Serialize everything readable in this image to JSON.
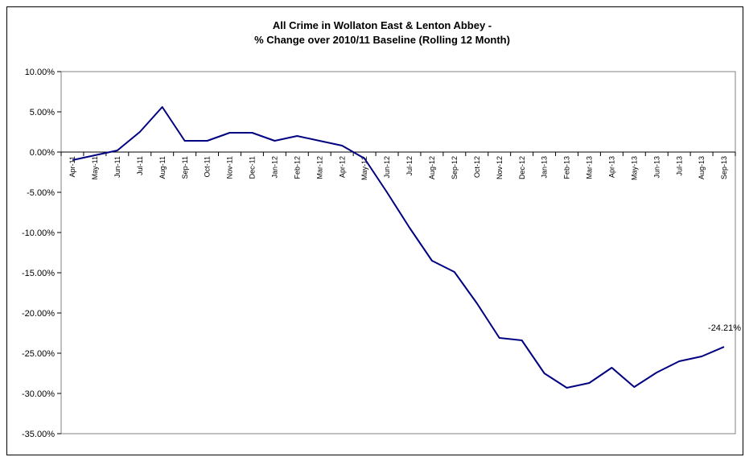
{
  "chart_data": {
    "type": "line",
    "title_lines": [
      "All Crime in Wollaton East & Lenton Abbey -",
      "% Change over 2010/11 Baseline (Rolling 12 Month)"
    ],
    "xlabel": "",
    "ylabel": "",
    "ylim": [
      -35,
      10
    ],
    "yticks": [
      10,
      5,
      0,
      -5,
      -10,
      -15,
      -20,
      -25,
      -30,
      -35
    ],
    "ytick_labels": [
      "10.00%",
      "5.00%",
      "0.00%",
      "-5.00%",
      "-10.00%",
      "-15.00%",
      "-20.00%",
      "-25.00%",
      "-30.00%",
      "-35.00%"
    ],
    "categories": [
      "Apr-11",
      "May-11",
      "Jun-11",
      "Jul-11",
      "Aug-11",
      "Sep-11",
      "Oct-11",
      "Nov-11",
      "Dec-11",
      "Jan-12",
      "Feb-12",
      "Mar-12",
      "Apr-12",
      "May-12",
      "Jun-12",
      "Jul-12",
      "Aug-12",
      "Sep-12",
      "Oct-12",
      "Nov-12",
      "Dec-12",
      "Jan-13",
      "Feb-13",
      "Mar-13",
      "Apr-13",
      "May-13",
      "Jun-13",
      "Jul-13",
      "Aug-13",
      "Sep-13"
    ],
    "series": [
      {
        "color": "#000080",
        "values": [
          -1.0,
          -0.4,
          0.2,
          2.5,
          5.6,
          1.4,
          1.4,
          2.4,
          2.4,
          1.4,
          2.0,
          1.4,
          0.8,
          -0.8,
          -5.0,
          -9.4,
          -13.5,
          -14.9,
          -18.8,
          -23.1,
          -23.4,
          -27.5,
          -29.3,
          -28.7,
          -26.8,
          -29.2,
          -27.4,
          -26.0,
          -25.4,
          -24.21
        ]
      }
    ],
    "data_labels": [
      {
        "index": 29,
        "text": "-24.21%"
      }
    ],
    "grid": false,
    "legend": "none"
  }
}
